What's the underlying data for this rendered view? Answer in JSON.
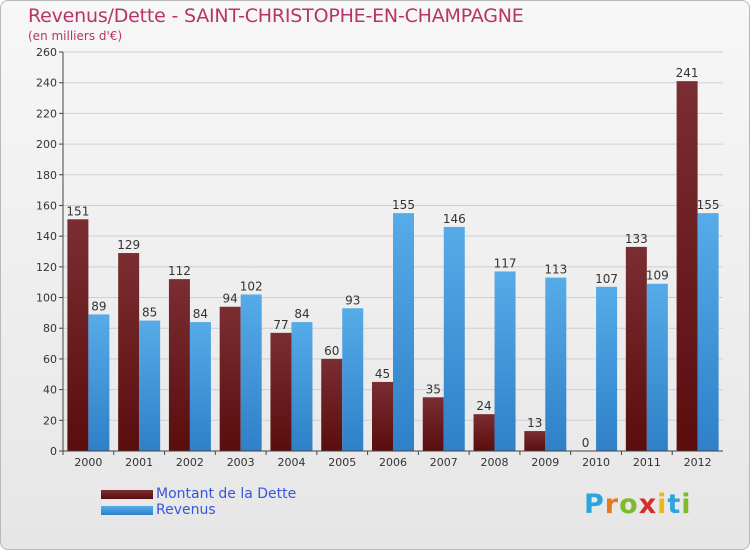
{
  "title": "Revenus/Dette - SAINT-CHRISTOPHE-EN-CHAMPAGNE",
  "subtitle": "(en milliers d'€)",
  "colors": {
    "dette_top": "#7a2e32",
    "dette_bottom": "#5a0d0d",
    "revenus_top": "#56abe8",
    "revenus_bottom": "#2f80c8",
    "title": "#b8336a",
    "legend_text": "#3a55d8"
  },
  "legend": {
    "dette": "Montant de la Dette",
    "revenus": "Revenus"
  },
  "logo": {
    "letters": [
      "P",
      "r",
      "o",
      "x",
      "i",
      "t",
      "i"
    ],
    "colors": [
      "#2aa5e0",
      "#e8791e",
      "#7dbb2a",
      "#d32d2d",
      "#e8b81e",
      "#2aa5e0",
      "#7dbb2a"
    ]
  },
  "chart_data": {
    "type": "bar",
    "categories": [
      "2000",
      "2001",
      "2002",
      "2003",
      "2004",
      "2005",
      "2006",
      "2007",
      "2008",
      "2009",
      "2010",
      "2011",
      "2012"
    ],
    "series": [
      {
        "name": "Montant de la Dette",
        "values": [
          151,
          129,
          112,
          94,
          77,
          60,
          45,
          35,
          24,
          13,
          0,
          133,
          241
        ]
      },
      {
        "name": "Revenus",
        "values": [
          89,
          85,
          84,
          102,
          84,
          93,
          155,
          146,
          117,
          113,
          107,
          109,
          155
        ]
      }
    ],
    "yticks": [
      0,
      20,
      40,
      60,
      80,
      100,
      120,
      140,
      160,
      180,
      200,
      220,
      240,
      260
    ],
    "ylim": [
      0,
      260
    ],
    "grid": true
  }
}
